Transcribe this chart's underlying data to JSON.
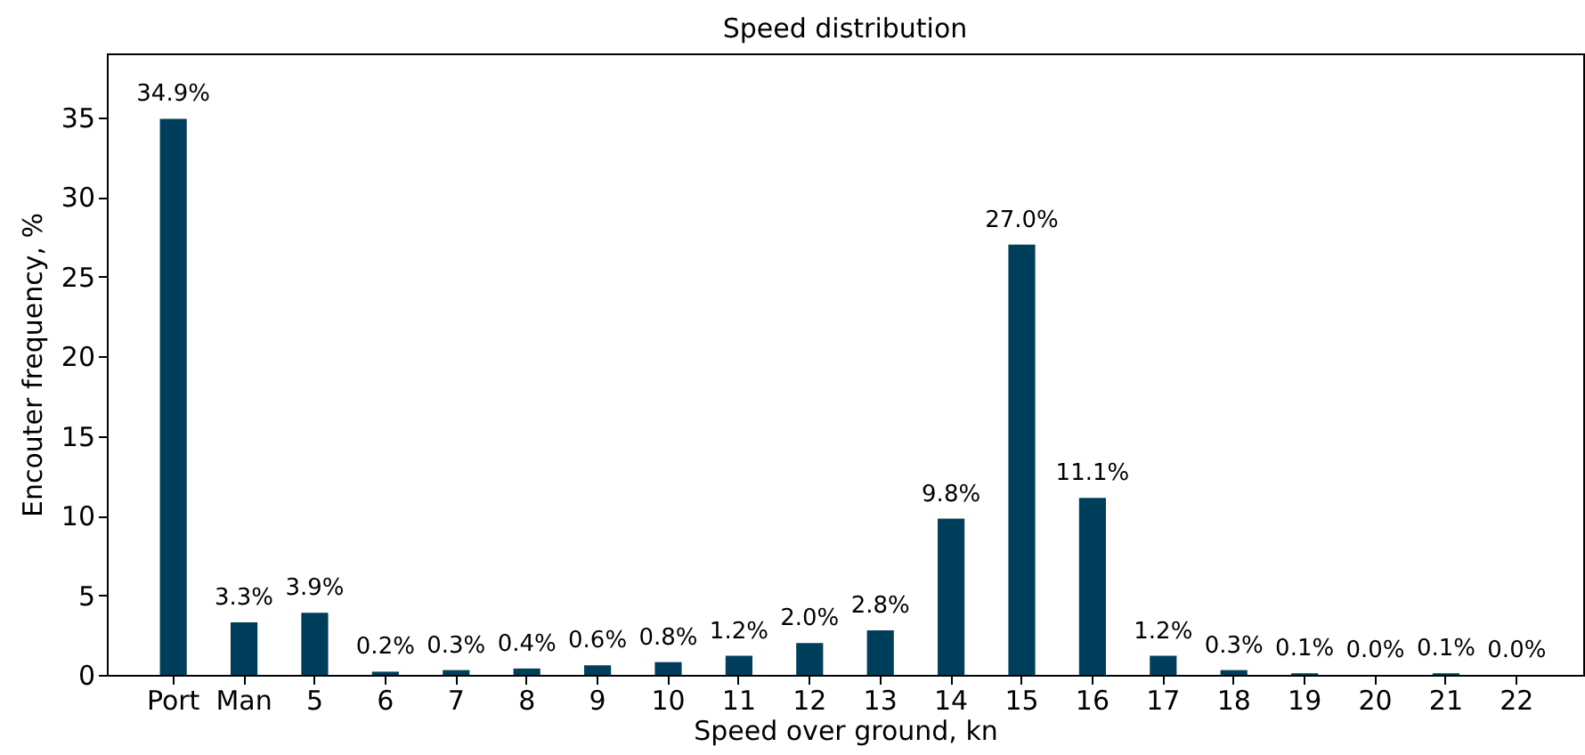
{
  "chart_data": {
    "type": "bar",
    "title": "Speed distribution",
    "xlabel": "Speed over ground, kn",
    "ylabel": "Encouter frequency, %",
    "categories": [
      "Port",
      "Man",
      "5",
      "6",
      "7",
      "8",
      "9",
      "10",
      "11",
      "12",
      "13",
      "14",
      "15",
      "16",
      "17",
      "18",
      "19",
      "20",
      "21",
      "22"
    ],
    "values": [
      34.9,
      3.3,
      3.9,
      0.2,
      0.3,
      0.4,
      0.6,
      0.8,
      1.2,
      2.0,
      2.8,
      9.8,
      27.0,
      11.1,
      1.2,
      0.3,
      0.1,
      0.0,
      0.1,
      0.0
    ],
    "value_labels": [
      "34.9%",
      "3.3%",
      "3.9%",
      "0.2%",
      "0.3%",
      "0.4%",
      "0.6%",
      "0.8%",
      "1.2%",
      "2.0%",
      "2.8%",
      "9.8%",
      "27.0%",
      "11.1%",
      "1.2%",
      "0.3%",
      "0.1%",
      "0.0%",
      "0.1%",
      "0.0%"
    ],
    "color": "#003f5c",
    "ylim": [
      0,
      39
    ],
    "yticks": [
      0,
      5,
      10,
      15,
      20,
      25,
      30,
      35
    ],
    "grid": false
  }
}
